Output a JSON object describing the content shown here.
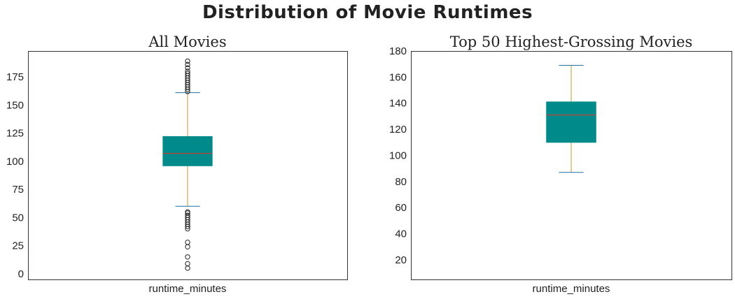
{
  "figure": {
    "suptitle": "Distribution of Movie Runtimes"
  },
  "colors": {
    "box_fill": "#008b8b",
    "box_edge": "#008b8b",
    "median": "#b5453b",
    "whisker": "#d4901c",
    "cap": "#1f6f9f",
    "flier_edge": "#222222",
    "frame": "#333333"
  },
  "chart_data": [
    {
      "type": "box",
      "title": "All Movies",
      "categories": [
        "runtime_minutes"
      ],
      "ylim": [
        -5,
        198
      ],
      "yticks": [
        0,
        25,
        50,
        75,
        100,
        125,
        150,
        175
      ],
      "grid": false,
      "stats": {
        "whisker_low": 60,
        "q1": 96,
        "median": 107,
        "q3": 122,
        "whisker_high": 161
      },
      "fliers": [
        5,
        9,
        15,
        24,
        28,
        40,
        42,
        44,
        46,
        48,
        50,
        52,
        54,
        55,
        162,
        164,
        166,
        168,
        170,
        172,
        174,
        176,
        178,
        180,
        183,
        186,
        189
      ]
    },
    {
      "type": "box",
      "title": "Top 50 Highest-Grossing Movies",
      "categories": [
        "runtime_minutes"
      ],
      "ylim": [
        5,
        180
      ],
      "yticks": [
        20,
        40,
        60,
        80,
        100,
        120,
        140,
        160,
        180
      ],
      "grid": false,
      "stats": {
        "whisker_low": 87,
        "q1": 110,
        "median": 131,
        "q3": 141,
        "whisker_high": 169
      },
      "fliers": []
    }
  ]
}
